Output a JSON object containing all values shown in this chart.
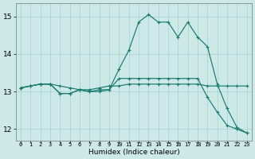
{
  "xlabel": "Humidex (Indice chaleur)",
  "ylabel": "",
  "xlim": [
    -0.5,
    23.5
  ],
  "ylim": [
    11.7,
    15.35
  ],
  "xtick_labels": [
    "0",
    "1",
    "2",
    "3",
    "4",
    "5",
    "6",
    "7",
    "8",
    "9",
    "10",
    "11",
    "12",
    "13",
    "14",
    "15",
    "16",
    "17",
    "18",
    "19",
    "20",
    "21",
    "22",
    "23"
  ],
  "xticks": [
    0,
    1,
    2,
    3,
    4,
    5,
    6,
    7,
    8,
    9,
    10,
    11,
    12,
    13,
    14,
    15,
    16,
    17,
    18,
    19,
    20,
    21,
    22,
    23
  ],
  "yticks": [
    12,
    13,
    14,
    15
  ],
  "background_color": "#cce9e7",
  "grid_color": "#aad4d0",
  "line_color": "#1a7a6e",
  "line1_x": [
    0,
    1,
    2,
    3,
    4,
    5,
    6,
    7,
    8,
    9,
    10,
    11,
    12,
    13,
    14,
    15,
    16,
    17,
    18,
    19,
    20,
    21,
    22,
    23
  ],
  "line1_y": [
    13.1,
    13.15,
    13.2,
    13.2,
    13.15,
    13.1,
    13.05,
    13.05,
    13.1,
    13.15,
    13.15,
    13.2,
    13.2,
    13.2,
    13.2,
    13.2,
    13.2,
    13.2,
    13.2,
    13.15,
    13.15,
    13.15,
    13.15,
    13.15
  ],
  "line2_x": [
    0,
    1,
    2,
    3,
    4,
    5,
    6,
    7,
    8,
    9,
    10,
    11,
    12,
    13,
    14,
    15,
    16,
    17,
    18,
    19,
    20,
    21,
    22,
    23
  ],
  "line2_y": [
    13.1,
    13.15,
    13.2,
    13.2,
    12.95,
    12.95,
    13.05,
    13.0,
    13.0,
    13.05,
    13.6,
    14.1,
    14.85,
    15.05,
    14.85,
    14.85,
    14.45,
    14.85,
    14.45,
    14.2,
    13.2,
    12.55,
    12.05,
    11.9
  ],
  "line3_x": [
    0,
    1,
    2,
    3,
    4,
    5,
    6,
    7,
    8,
    9,
    10,
    11,
    12,
    13,
    14,
    15,
    16,
    17,
    18,
    19,
    20,
    21,
    22,
    23
  ],
  "line3_y": [
    13.1,
    13.15,
    13.2,
    13.2,
    12.95,
    12.95,
    13.05,
    13.0,
    13.05,
    13.05,
    13.35,
    13.35,
    13.35,
    13.35,
    13.35,
    13.35,
    13.35,
    13.35,
    13.35,
    12.85,
    12.45,
    12.1,
    12.0,
    11.9
  ]
}
